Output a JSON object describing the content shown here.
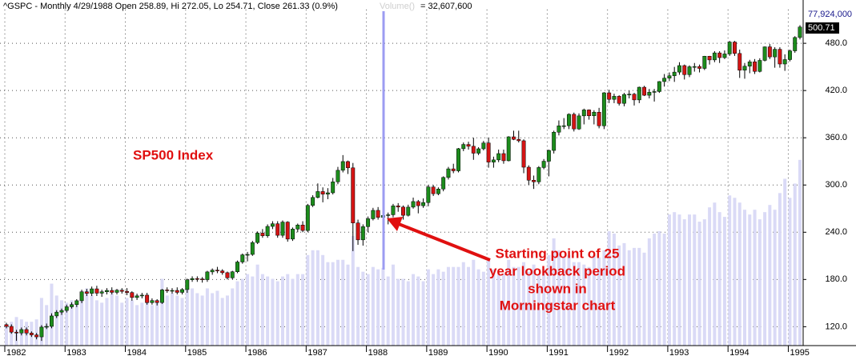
{
  "chart_data": {
    "type": "candlestick",
    "title": "^GSPC - Monthly 4/29/1988 Open 258.89, Hi 272.05, Lo 254.71, Close 261.33 (0.9%)",
    "volume_legend": "Volume()",
    "volume_readout": "= 32,607,600",
    "annotations": [
      {
        "lines": [
          "SP500 Index"
        ]
      },
      {
        "lines": [
          "Starting point of 25",
          "year lookback period",
          "shown in",
          "Morningstar chart"
        ]
      }
    ],
    "value_tags": [
      {
        "value": 77924000,
        "label": "77,924,000"
      },
      {
        "value": 500.71,
        "label": "500.71"
      }
    ],
    "up_color": "#1c8c1c",
    "down_color": "#d41414",
    "volume_color": "#dadaf6",
    "grid": true,
    "ylim": [
      96,
      535
    ],
    "yticks": [
      {
        "value": 120,
        "label": "120.0"
      },
      {
        "value": 180,
        "label": "180.0"
      },
      {
        "value": 240,
        "label": "240.0"
      },
      {
        "value": 300,
        "label": "300.0"
      },
      {
        "value": 360,
        "label": "360.0"
      },
      {
        "value": 420,
        "label": "420.0"
      },
      {
        "value": 480,
        "label": "480.0"
      }
    ],
    "y2lim": [
      0,
      145000000
    ],
    "categories": [
      "1982",
      null,
      null,
      null,
      null,
      null,
      null,
      null,
      null,
      null,
      null,
      null,
      "1983",
      null,
      null,
      null,
      null,
      null,
      null,
      null,
      null,
      null,
      null,
      null,
      "1984",
      null,
      null,
      null,
      null,
      null,
      null,
      null,
      null,
      null,
      null,
      null,
      "1985",
      null,
      null,
      null,
      null,
      null,
      null,
      null,
      null,
      null,
      null,
      null,
      "1986",
      null,
      null,
      null,
      null,
      null,
      null,
      null,
      null,
      null,
      null,
      null,
      "1987",
      null,
      null,
      null,
      null,
      null,
      null,
      null,
      null,
      null,
      null,
      null,
      "1988",
      null,
      null,
      null,
      null,
      null,
      null,
      null,
      null,
      null,
      null,
      null,
      "1989",
      null,
      null,
      null,
      null,
      null,
      null,
      null,
      null,
      null,
      null,
      null,
      "1990",
      null,
      null,
      null,
      null,
      null,
      null,
      null,
      null,
      null,
      null,
      null,
      "1991",
      null,
      null,
      null,
      null,
      null,
      null,
      null,
      null,
      null,
      null,
      null,
      "1992",
      null,
      null,
      null,
      null,
      null,
      null,
      null,
      null,
      null,
      null,
      null,
      "1993",
      null,
      null,
      null,
      null,
      null,
      null,
      null,
      null,
      null,
      null,
      null,
      "1994",
      null,
      null,
      null,
      null,
      null,
      null,
      null,
      null,
      null,
      null,
      null,
      "1995",
      null,
      null
    ],
    "open": [
      122.6,
      120.4,
      113.1,
      112.0,
      116.4,
      111.9,
      109.6,
      107.1,
      119.5,
      120.4,
      133.7,
      138.5,
      140.6,
      145.3,
      148.1,
      153.0,
      164.4,
      162.4,
      168.1,
      162.6,
      164.4,
      166.1,
      163.6,
      166.4,
      164.9,
      163.4,
      157.1,
      159.2,
      160.1,
      150.6,
      153.2,
      150.7,
      166.7,
      166.1,
      166.1,
      163.6,
      167.2,
      179.6,
      181.2,
      180.7,
      179.8,
      189.6,
      191.9,
      190.9,
      188.6,
      182.1,
      189.8,
      202.2,
      211.3,
      211.8,
      226.9,
      238.9,
      235.5,
      247.4,
      250.8,
      236.1,
      252.9,
      231.3,
      244.0,
      249.2,
      242.2,
      274.1,
      284.2,
      291.7,
      288.4,
      290.1,
      304.0,
      318.7,
      329.8,
      321.8,
      251.8,
      230.3,
      247.1,
      257.1,
      267.8,
      258.89,
      261.3,
      262.2,
      273.5,
      272.0,
      261.5,
      271.9,
      279.0,
      273.7,
      277.7,
      297.5,
      288.9,
      294.9,
      309.6,
      320.5,
      318.0,
      346.1,
      351.5,
      349.2,
      340.4,
      346.0,
      353.4,
      329.1,
      331.9,
      339.9,
      330.8,
      361.2,
      358.0,
      356.2,
      322.6,
      306.1,
      304.0,
      322.2,
      330.2,
      343.9,
      367.1,
      375.2,
      375.3,
      389.8,
      371.2,
      387.8,
      395.4,
      387.9,
      392.5,
      375.2,
      417.1,
      408.8,
      412.7,
      403.7,
      415.0,
      415.4,
      408.1,
      424.2,
      414.0,
      417.8,
      418.7,
      431.4,
      435.7,
      438.8,
      443.4,
      451.7,
      440.2,
      450.2,
      450.5,
      448.1,
      463.6,
      458.9,
      467.8,
      461.8,
      466.5,
      481.6,
      467.1,
      445.8,
      450.9,
      456.5,
      444.3,
      458.3,
      475.5,
      462.7,
      472.4,
      453.7,
      459.3,
      470.4,
      487.4
    ],
    "high": [
      125,
      123,
      116,
      119,
      119,
      114,
      112,
      122,
      124,
      137,
      141,
      143,
      148,
      151,
      155,
      167,
      168,
      171,
      172,
      167,
      169,
      170,
      168,
      169,
      169,
      165,
      162,
      163,
      163,
      156,
      155,
      168,
      170,
      169,
      170,
      169,
      181,
      184,
      184,
      183,
      191,
      194,
      196,
      193,
      190,
      191,
      204,
      213,
      215,
      229,
      241,
      244,
      250,
      254,
      254,
      255,
      254,
      246,
      251,
      254,
      276,
      287,
      302,
      297,
      296,
      309,
      323,
      338,
      331,
      328,
      256,
      250,
      260,
      271,
      272,
      272.05,
      265,
      276,
      277,
      274,
      275,
      284,
      281,
      283,
      300,
      300,
      297,
      311,
      323,
      327,
      347,
      354,
      355,
      360,
      348,
      356,
      360,
      336,
      345,
      345,
      362,
      369,
      369,
      358,
      325,
      312,
      324,
      333,
      345,
      369,
      382,
      385,
      391,
      392,
      391,
      397,
      396,
      395,
      398,
      418,
      421,
      416,
      414,
      417,
      420,
      417,
      425,
      426,
      422,
      422,
      432,
      441,
      443,
      450,
      456,
      453,
      452,
      455,
      453,
      464,
      464,
      470,
      470,
      471,
      483,
      483,
      472,
      455,
      459,
      460,
      461,
      476,
      479,
      475,
      475,
      466,
      472,
      489,
      503
    ],
    "low": [
      118,
      111,
      102,
      109,
      109,
      107,
      104,
      102,
      117,
      118,
      131,
      135,
      138,
      143,
      145,
      150,
      159,
      159,
      159,
      158,
      161,
      161,
      161,
      162,
      160,
      153,
      154,
      156,
      148,
      148,
      147,
      149,
      163,
      162,
      161,
      161,
      163,
      177,
      177,
      176,
      177,
      186,
      188,
      186,
      180,
      180,
      188,
      200,
      203,
      210,
      225,
      233,
      233,
      244,
      233,
      233,
      228,
      229,
      240,
      240,
      240,
      272,
      283,
      278,
      282,
      288,
      301,
      316,
      314,
      216,
      224,
      223,
      240,
      255,
      256,
      254.71,
      250,
      259,
      266,
      256,
      260,
      270,
      264,
      271,
      273,
      286,
      287,
      292,
      307,
      315,
      316,
      343,
      345,
      332,
      338,
      344,
      322,
      322,
      329,
      327,
      330,
      357,
      354,
      315,
      300,
      295,
      301,
      320,
      311,
      340,
      363,
      371,
      371,
      368,
      370,
      377,
      383,
      377,
      372,
      371,
      404,
      404,
      401,
      400,
      410,
      401,
      404,
      413,
      410,
      406,
      417,
      425,
      432,
      431,
      440,
      434,
      437,
      444,
      443,
      446,
      453,
      456,
      455,
      460,
      464,
      464,
      436,
      435,
      442,
      441,
      443,
      457,
      460,
      449,
      449,
      445,
      457,
      468,
      485
    ],
    "close": [
      120.4,
      113.1,
      112.0,
      116.4,
      111.9,
      109.6,
      107.1,
      119.5,
      120.4,
      133.7,
      138.5,
      140.6,
      145.3,
      148.1,
      153.0,
      164.4,
      162.4,
      168.1,
      162.6,
      164.4,
      166.1,
      163.6,
      166.4,
      164.9,
      163.4,
      157.1,
      159.2,
      160.1,
      150.6,
      153.2,
      150.7,
      166.7,
      166.1,
      166.1,
      163.6,
      167.2,
      179.6,
      181.2,
      180.7,
      179.8,
      189.6,
      191.9,
      190.9,
      188.6,
      182.1,
      189.8,
      202.2,
      211.3,
      211.8,
      226.9,
      238.9,
      235.5,
      247.4,
      250.8,
      236.1,
      252.9,
      231.3,
      244.0,
      249.2,
      242.2,
      274.1,
      284.2,
      291.7,
      288.4,
      290.1,
      304.0,
      318.7,
      329.8,
      321.8,
      251.8,
      230.3,
      247.1,
      257.1,
      267.8,
      258.9,
      261.33,
      262.2,
      273.5,
      272.0,
      261.5,
      271.9,
      279.0,
      273.7,
      277.7,
      297.5,
      288.9,
      294.9,
      309.6,
      320.5,
      318.0,
      346.1,
      351.5,
      349.2,
      340.4,
      346.0,
      353.4,
      329.1,
      331.9,
      339.9,
      330.8,
      361.2,
      358.0,
      356.2,
      322.6,
      306.1,
      304.0,
      322.2,
      330.2,
      343.9,
      367.1,
      375.2,
      375.3,
      389.8,
      371.2,
      387.8,
      395.4,
      387.9,
      392.5,
      375.2,
      417.1,
      408.8,
      412.7,
      403.7,
      415.0,
      415.4,
      408.1,
      424.2,
      414.0,
      417.8,
      418.7,
      431.4,
      435.7,
      438.8,
      443.4,
      451.7,
      440.2,
      450.2,
      450.5,
      448.1,
      463.6,
      458.9,
      467.8,
      461.8,
      466.5,
      481.6,
      467.1,
      445.8,
      450.9,
      456.5,
      444.3,
      458.3,
      475.5,
      462.7,
      472.4,
      453.7,
      459.3,
      470.4,
      487.4,
      500.71
    ],
    "volume": [
      9000000,
      10000000,
      12000000,
      11000000,
      10000000,
      10000000,
      11000000,
      20000000,
      17000000,
      26000000,
      21000000,
      19000000,
      18000000,
      19000000,
      19000000,
      22000000,
      24000000,
      21000000,
      19000000,
      18000000,
      20000000,
      22000000,
      21000000,
      18000000,
      20000000,
      19000000,
      17000000,
      18000000,
      19000000,
      17000000,
      18000000,
      28000000,
      21000000,
      22000000,
      21000000,
      20000000,
      26000000,
      24000000,
      22000000,
      21000000,
      24000000,
      22000000,
      23000000,
      20000000,
      21000000,
      24000000,
      27000000,
      28000000,
      30000000,
      29000000,
      34000000,
      30000000,
      29000000,
      28000000,
      27000000,
      29000000,
      30000000,
      28000000,
      30000000,
      30000000,
      38000000,
      40000000,
      40000000,
      38000000,
      35000000,
      35000000,
      36000000,
      36000000,
      34000000,
      46000000,
      33000000,
      31000000,
      30000000,
      33000000,
      32000000,
      32607600,
      29000000,
      34000000,
      28000000,
      28000000,
      27000000,
      30000000,
      29000000,
      27000000,
      32000000,
      30000000,
      32000000,
      31000000,
      33000000,
      33000000,
      33000000,
      35000000,
      33000000,
      36000000,
      32000000,
      31000000,
      36000000,
      32000000,
      30000000,
      30000000,
      36000000,
      33000000,
      33000000,
      35000000,
      31000000,
      34000000,
      30000000,
      32000000,
      38000000,
      45000000,
      40000000,
      37000000,
      38000000,
      35000000,
      35000000,
      34000000,
      33000000,
      38000000,
      37000000,
      40000000,
      48000000,
      47000000,
      42000000,
      43000000,
      40000000,
      41000000,
      41000000,
      39000000,
      45000000,
      47000000,
      48000000,
      47000000,
      55000000,
      56000000,
      55000000,
      53000000,
      55000000,
      55000000,
      52000000,
      53000000,
      58000000,
      60000000,
      56000000,
      54000000,
      63000000,
      62000000,
      60000000,
      57000000,
      55000000,
      57000000,
      53000000,
      56000000,
      59000000,
      57000000,
      64000000,
      70000000,
      62000000,
      68000000,
      77924000
    ]
  }
}
